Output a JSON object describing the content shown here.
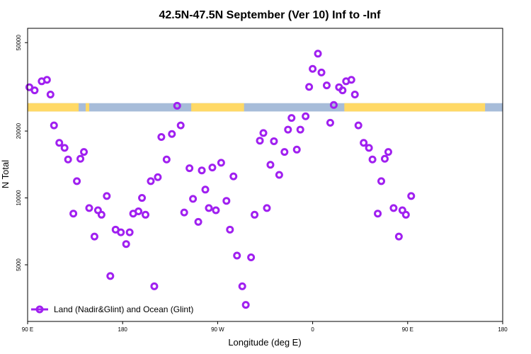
{
  "chart_data": {
    "type": "scatter",
    "title": "42.5N-47.5N September (Ver 10)   Inf to -Inf",
    "xlabel": "Longitude (deg E)",
    "ylabel": "N Total",
    "xlim": [
      -90,
      180
    ],
    "ylim": [
      2780,
      58000
    ],
    "y_scale": "log",
    "grid": false,
    "x_ticks": [
      {
        "value": -90,
        "label": "90 E"
      },
      {
        "value": -36,
        "label": "180"
      },
      {
        "value": 18,
        "label": "90 W"
      },
      {
        "value": 72,
        "label": "0"
      },
      {
        "value": 126,
        "label": "90 E"
      },
      {
        "value": 180,
        "label": "180"
      }
    ],
    "y_ticks": [
      5000,
      10000,
      20000,
      50000
    ],
    "colors": {
      "marker": "#a020f0",
      "land": "#ffd966",
      "ocean": "#a7bcd9"
    },
    "land_ocean_strip": {
      "y_range": [
        24500,
        26700
      ],
      "land_segments": [
        [
          -90,
          -61
        ],
        [
          -57,
          -55
        ],
        [
          3,
          33
        ],
        [
          90,
          170
        ]
      ]
    },
    "legend": {
      "position": "bottom-left",
      "entries": [
        "Land (Nadir&Glint) and Ocean (Glint)"
      ]
    },
    "series": [
      {
        "name": "Land (Nadir&Glint) and Ocean (Glint)",
        "points": [
          [
            -89,
            31500
          ],
          [
            -86,
            30500
          ],
          [
            -82,
            33500
          ],
          [
            -79,
            34000
          ],
          [
            -77,
            29200
          ],
          [
            -75,
            21200
          ],
          [
            -72,
            17700
          ],
          [
            -69,
            16800
          ],
          [
            -67,
            14900
          ],
          [
            -64,
            8500
          ],
          [
            -62,
            11900
          ],
          [
            -60,
            15000
          ],
          [
            -58,
            16100
          ],
          [
            -55,
            9000
          ],
          [
            -52,
            6700
          ],
          [
            -50,
            8800
          ],
          [
            -48,
            8400
          ],
          [
            -45,
            10200
          ],
          [
            -43,
            4450
          ],
          [
            -40,
            7200
          ],
          [
            -37,
            7000
          ],
          [
            -34,
            6200
          ],
          [
            -32,
            7000
          ],
          [
            -30,
            8500
          ],
          [
            -27,
            8700
          ],
          [
            -25,
            10000
          ],
          [
            -23,
            8400
          ],
          [
            -20,
            11900
          ],
          [
            -18,
            4000
          ],
          [
            -16,
            12400
          ],
          [
            -14,
            18800
          ],
          [
            -11,
            14900
          ],
          [
            -8,
            19400
          ],
          [
            -5,
            26000
          ],
          [
            -3,
            21200
          ],
          [
            -1,
            8600
          ],
          [
            2,
            13600
          ],
          [
            4,
            9900
          ],
          [
            7,
            7800
          ],
          [
            9,
            13300
          ],
          [
            11,
            10900
          ],
          [
            13,
            9000
          ],
          [
            15,
            13700
          ],
          [
            17,
            8800
          ],
          [
            20,
            14400
          ],
          [
            23,
            9700
          ],
          [
            25,
            7200
          ],
          [
            27,
            12500
          ],
          [
            29,
            5500
          ],
          [
            32,
            4000
          ],
          [
            34,
            3300
          ],
          [
            37,
            5400
          ],
          [
            39,
            8400
          ],
          [
            42,
            18100
          ],
          [
            44,
            19600
          ],
          [
            46,
            9000
          ],
          [
            48,
            14100
          ],
          [
            50,
            18000
          ],
          [
            53,
            12700
          ],
          [
            56,
            16100
          ],
          [
            58,
            20300
          ],
          [
            60,
            22900
          ],
          [
            63,
            16500
          ],
          [
            65,
            20300
          ],
          [
            68,
            23300
          ],
          [
            70,
            31600
          ],
          [
            72,
            38100
          ],
          [
            75,
            44600
          ],
          [
            77,
            36700
          ],
          [
            80,
            32100
          ],
          [
            82,
            21800
          ],
          [
            84,
            26200
          ],
          [
            87,
            31500
          ],
          [
            89,
            30500
          ],
          [
            91,
            33500
          ],
          [
            94,
            34000
          ],
          [
            96,
            29200
          ],
          [
            98,
            21200
          ],
          [
            101,
            17700
          ],
          [
            104,
            16800
          ],
          [
            106,
            14900
          ],
          [
            109,
            8500
          ],
          [
            111,
            11900
          ],
          [
            113,
            15000
          ],
          [
            115,
            16100
          ],
          [
            118,
            9000
          ],
          [
            121,
            6700
          ],
          [
            123,
            8800
          ],
          [
            125,
            8400
          ],
          [
            128,
            10200
          ]
        ]
      }
    ]
  }
}
